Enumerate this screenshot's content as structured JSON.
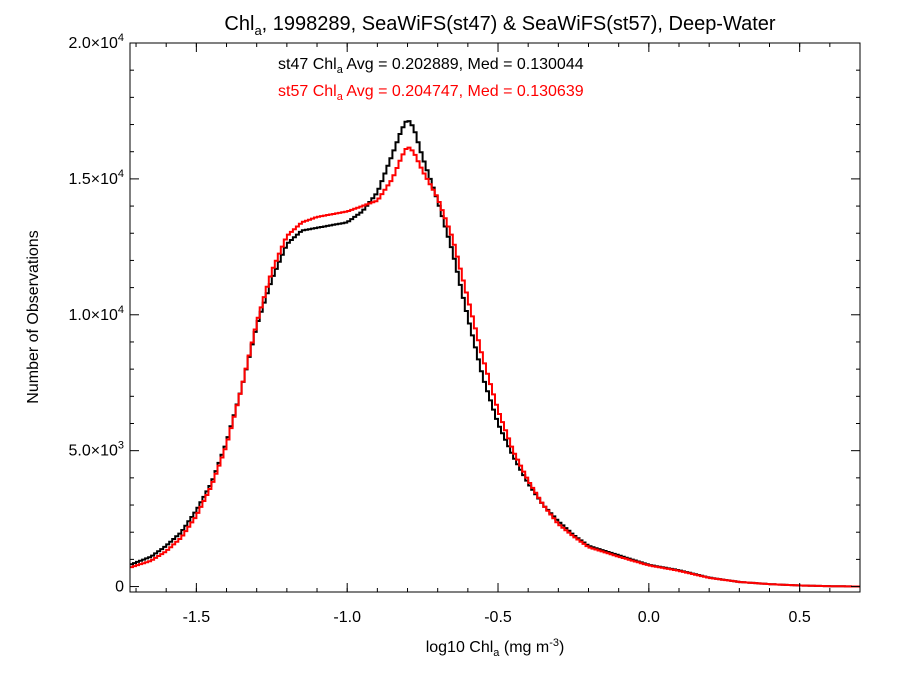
{
  "chart_data": {
    "type": "line",
    "title": {
      "prefix": "Chl",
      "sub": "a",
      "suffix": ", 1998289, SeaWiFS(st47) & SeaWiFS(st57), Deep-Water"
    },
    "xlabel": {
      "prefix": "log10 Chl",
      "sub": "a",
      "mid": " (mg m",
      "sup": "-3",
      "suffix": ")"
    },
    "ylabel": "Number of Observations",
    "xlim": [
      -1.72,
      0.7
    ],
    "ylim": [
      -200,
      20000
    ],
    "xticks": [
      {
        "value": -1.5,
        "label": "-1.5"
      },
      {
        "value": -1.0,
        "label": "-1.0"
      },
      {
        "value": -0.5,
        "label": "-0.5"
      },
      {
        "value": 0.0,
        "label": "0.0"
      },
      {
        "value": 0.5,
        "label": "0.5"
      }
    ],
    "yticks": [
      {
        "value": 0,
        "mant": "0",
        "exp": ""
      },
      {
        "value": 5000,
        "mant": "5.0×10",
        "exp": "3"
      },
      {
        "value": 10000,
        "mant": "1.0×10",
        "exp": "4"
      },
      {
        "value": 15000,
        "mant": "1.5×10",
        "exp": "4"
      },
      {
        "value": 20000,
        "mant": "2.0×10",
        "exp": "4"
      }
    ],
    "grid": false,
    "annotations": [
      {
        "prefix": "st47 Chl",
        "sub": "a",
        "suffix": " Avg = 0.202889, Med = 0.130044",
        "color": "#000000"
      },
      {
        "prefix": "st57 Chl",
        "sub": "a",
        "suffix": " Avg = 0.204747, Med = 0.130639",
        "color": "#ff0000"
      }
    ],
    "series": [
      {
        "key": "st47",
        "color": "#000000",
        "style": "step",
        "points": [
          [
            -1.72,
            800
          ],
          [
            -1.65,
            1100
          ],
          [
            -1.6,
            1500
          ],
          [
            -1.55,
            2000
          ],
          [
            -1.5,
            2800
          ],
          [
            -1.45,
            3800
          ],
          [
            -1.4,
            5300
          ],
          [
            -1.35,
            7300
          ],
          [
            -1.3,
            9600
          ],
          [
            -1.25,
            11300
          ],
          [
            -1.2,
            12600
          ],
          [
            -1.15,
            13100
          ],
          [
            -1.1,
            13200
          ],
          [
            -1.05,
            13300
          ],
          [
            -1.0,
            13400
          ],
          [
            -0.95,
            13800
          ],
          [
            -0.9,
            14500
          ],
          [
            -0.85,
            15900
          ],
          [
            -0.82,
            16800
          ],
          [
            -0.8,
            17200
          ],
          [
            -0.78,
            16900
          ],
          [
            -0.75,
            15800
          ],
          [
            -0.7,
            14200
          ],
          [
            -0.65,
            12300
          ],
          [
            -0.6,
            9900
          ],
          [
            -0.55,
            7700
          ],
          [
            -0.5,
            6000
          ],
          [
            -0.45,
            4800
          ],
          [
            -0.4,
            3800
          ],
          [
            -0.35,
            3000
          ],
          [
            -0.3,
            2400
          ],
          [
            -0.25,
            1900
          ],
          [
            -0.2,
            1500
          ],
          [
            -0.1,
            1150
          ],
          [
            0.0,
            800
          ],
          [
            0.1,
            600
          ],
          [
            0.2,
            330
          ],
          [
            0.3,
            170
          ],
          [
            0.4,
            90
          ],
          [
            0.5,
            40
          ],
          [
            0.6,
            15
          ],
          [
            0.7,
            0
          ]
        ]
      },
      {
        "key": "st57",
        "color": "#ff0000",
        "style": "step",
        "points": [
          [
            -1.72,
            700
          ],
          [
            -1.65,
            950
          ],
          [
            -1.6,
            1300
          ],
          [
            -1.55,
            1800
          ],
          [
            -1.5,
            2600
          ],
          [
            -1.45,
            3700
          ],
          [
            -1.4,
            5200
          ],
          [
            -1.35,
            7300
          ],
          [
            -1.3,
            9700
          ],
          [
            -1.25,
            11600
          ],
          [
            -1.2,
            12900
          ],
          [
            -1.15,
            13400
          ],
          [
            -1.1,
            13600
          ],
          [
            -1.05,
            13700
          ],
          [
            -1.0,
            13800
          ],
          [
            -0.95,
            14000
          ],
          [
            -0.9,
            14200
          ],
          [
            -0.85,
            15000
          ],
          [
            -0.82,
            15800
          ],
          [
            -0.8,
            16200
          ],
          [
            -0.78,
            16000
          ],
          [
            -0.75,
            15300
          ],
          [
            -0.7,
            14300
          ],
          [
            -0.65,
            12800
          ],
          [
            -0.6,
            10600
          ],
          [
            -0.55,
            8400
          ],
          [
            -0.5,
            6500
          ],
          [
            -0.45,
            5000
          ],
          [
            -0.4,
            3900
          ],
          [
            -0.35,
            3000
          ],
          [
            -0.3,
            2300
          ],
          [
            -0.25,
            1850
          ],
          [
            -0.2,
            1450
          ],
          [
            -0.1,
            1100
          ],
          [
            0.0,
            780
          ],
          [
            0.1,
            580
          ],
          [
            0.2,
            320
          ],
          [
            0.3,
            170
          ],
          [
            0.4,
            90
          ],
          [
            0.5,
            40
          ],
          [
            0.6,
            15
          ],
          [
            0.7,
            0
          ]
        ]
      }
    ]
  }
}
